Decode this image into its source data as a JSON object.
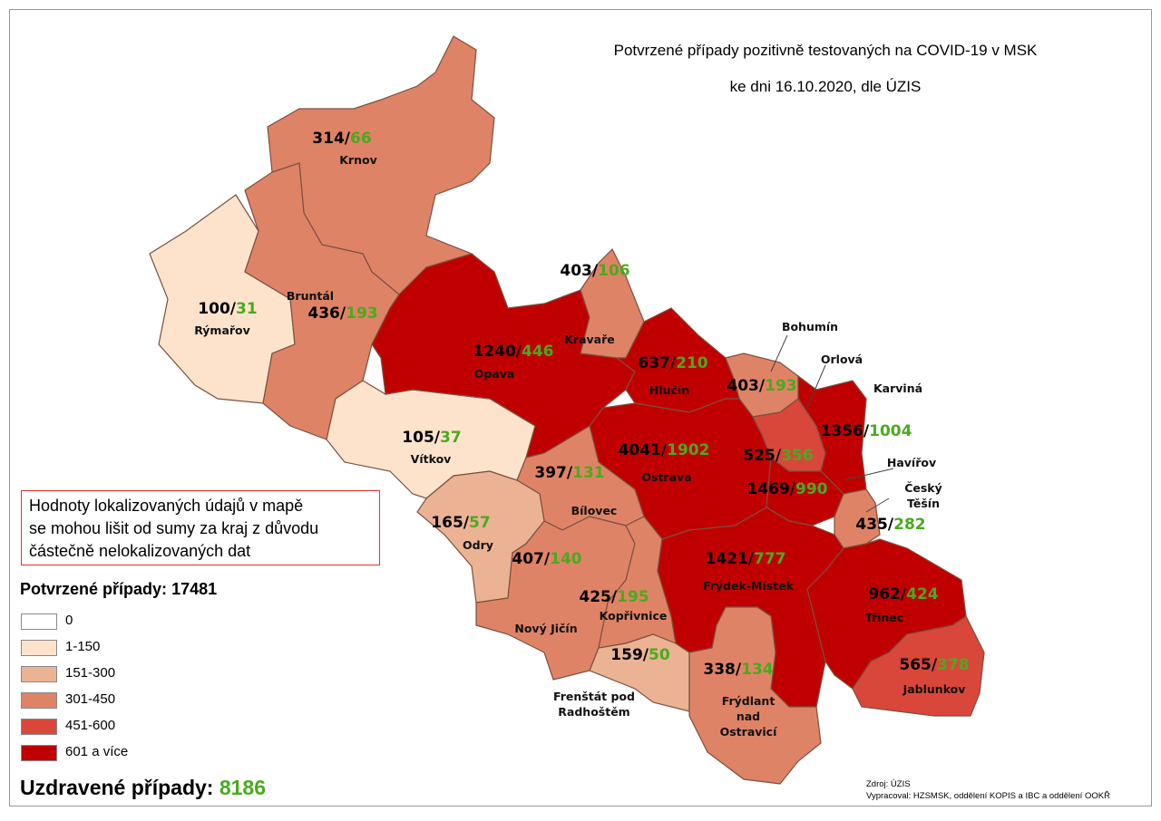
{
  "title": "Potvrzené případy pozitivně testovaných na COVID-19 v MSK",
  "subtitle": "ke dni 16.10.2020, dle ÚZIS",
  "separator": "/",
  "districts": [
    {
      "name": "Krnov",
      "confirmed": 314,
      "recovered": 66,
      "color": "#df8366"
    },
    {
      "name": "Rýmařov",
      "confirmed": 100,
      "recovered": 31,
      "color": "#fde3cc"
    },
    {
      "name": "Bruntál",
      "confirmed": 436,
      "recovered": 193,
      "color": "#df8366"
    },
    {
      "name": "Vítkov",
      "confirmed": 105,
      "recovered": 37,
      "color": "#fde3cc"
    },
    {
      "name": "Opava",
      "confirmed": 1240,
      "recovered": 446,
      "color": "#c00000"
    },
    {
      "name": "Kravaře",
      "confirmed": 403,
      "recovered": 106,
      "color": "#df8366"
    },
    {
      "name": "Hlučín",
      "confirmed": 637,
      "recovered": 210,
      "color": "#c00000"
    },
    {
      "name": "Bohumín",
      "confirmed": 403,
      "recovered": 193,
      "color": "#df8366"
    },
    {
      "name": "Orlová",
      "confirmed": 525,
      "recovered": 356,
      "color": "#d9473a"
    },
    {
      "name": "Karviná",
      "confirmed": 1356,
      "recovered": 1004,
      "color": "#c00000"
    },
    {
      "name": "Ostrava",
      "confirmed": 4041,
      "recovered": 1902,
      "color": "#c00000"
    },
    {
      "name": "Havířov",
      "confirmed": 1469,
      "recovered": 990,
      "color": "#c00000"
    },
    {
      "name": "Český Těšín",
      "confirmed": 435,
      "recovered": 282,
      "color": "#df8366"
    },
    {
      "name": "Bílovec",
      "confirmed": 397,
      "recovered": 131,
      "color": "#df8366"
    },
    {
      "name": "Odry",
      "confirmed": 165,
      "recovered": 57,
      "color": "#ebb393"
    },
    {
      "name": "Nový Jičín",
      "confirmed": 407,
      "recovered": 140,
      "color": "#df8366"
    },
    {
      "name": "Kopřivnice",
      "confirmed": 425,
      "recovered": 195,
      "color": "#df8366"
    },
    {
      "name": "Frenštát pod Radhoštěm",
      "confirmed": 159,
      "recovered": 50,
      "color": "#ebb393"
    },
    {
      "name": "Frýdek-Místek",
      "confirmed": 1421,
      "recovered": 777,
      "color": "#c00000"
    },
    {
      "name": "Frýdlant nad Ostravicí",
      "confirmed": 338,
      "recovered": 134,
      "color": "#df8366"
    },
    {
      "name": "Třinec",
      "confirmed": 962,
      "recovered": 424,
      "color": "#c00000"
    },
    {
      "name": "Jablunkov",
      "confirmed": 565,
      "recovered": 378,
      "color": "#d9473a"
    }
  ],
  "note": [
    "Hodnoty lokalizovaných údajů v mapě",
    "se mohou lišit od sumy za kraj z důvodu",
    "částečně nelokalizovaných dat"
  ],
  "confirmed_total": {
    "label": "Potvrzené případy:",
    "value": 17481
  },
  "legend": [
    {
      "label": "0",
      "color": "#ffffff"
    },
    {
      "label": "1-150",
      "color": "#fde3cc"
    },
    {
      "label": "151-300",
      "color": "#ebb393"
    },
    {
      "label": "301-450",
      "color": "#df8366"
    },
    {
      "label": "451-600",
      "color": "#d9473a"
    },
    {
      "label": "601 a více",
      "color": "#c00000"
    }
  ],
  "recovered_total": {
    "label": "Uzdravené případy:",
    "value": 8186
  },
  "source": [
    "Zdroj: ÚZIS",
    "Vypracoval: HZSMSK, oddělení KOPIS a IBC a oddělení OOKŘ"
  ]
}
